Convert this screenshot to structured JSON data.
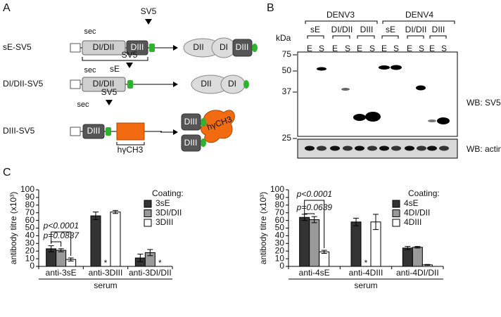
{
  "panel_labels": [
    "A",
    "B",
    "C"
  ],
  "panel_a": {
    "rows": [
      {
        "name": "sE-SV5",
        "sec": "sec",
        "tag": "SV5",
        "domains": [
          "DI/DII",
          "DIII"
        ],
        "bracket": "sE",
        "product": [
          "DII",
          "DI",
          "DIII"
        ]
      },
      {
        "name": "DI/DII-SV5",
        "sec": "sec",
        "tag": "SV5",
        "domains": [
          "DI/DII"
        ],
        "product": [
          "DII",
          "DI"
        ]
      },
      {
        "name": "DIII-SV5",
        "sec": "sec",
        "tag": "SV5",
        "domains": [
          "DIII"
        ],
        "fusion": "hγCH3",
        "product": [
          "DIII",
          "DIII",
          "hγCH3"
        ]
      }
    ]
  },
  "panel_b": {
    "groups": [
      {
        "name": "DENV3",
        "constructs": [
          "sE",
          "DI/DII",
          "DIII"
        ]
      },
      {
        "name": "DENV4",
        "constructs": [
          "sE",
          "DI/DII",
          "DIII"
        ]
      }
    ],
    "lanes": [
      "E",
      "S",
      "E",
      "S",
      "E",
      "S",
      "E",
      "S",
      "E",
      "S",
      "E",
      "S"
    ],
    "mw_unit": "kDa",
    "mw_markers": [
      75,
      50,
      37,
      25
    ],
    "blots": [
      "WB: SV5",
      "WB: actin"
    ]
  },
  "chart_data": [
    {
      "type": "bar",
      "y_label": "antibody titre (x10³)",
      "x_label": "serum",
      "legend_title": "Coating:",
      "categories": [
        "anti-3sE",
        "anti-3DIII",
        "anti-3DI/DII"
      ],
      "series": [
        {
          "name": "3sE",
          "color": "#333333",
          "values": [
            23,
            66,
            11
          ],
          "errors": [
            4,
            5,
            5
          ]
        },
        {
          "name": "3DI/DII",
          "color": "#999999",
          "values": [
            21,
            null,
            18
          ],
          "errors": [
            2,
            null,
            4
          ]
        },
        {
          "name": "3DIII",
          "color": "#ffffff",
          "values": [
            9,
            71,
            null
          ],
          "errors": [
            2,
            2,
            null
          ]
        }
      ],
      "ylim": [
        0,
        100
      ],
      "yticks": [
        0,
        10,
        20,
        30,
        40,
        50,
        60,
        70,
        80,
        90,
        100
      ],
      "annotations": [
        "p<0.0001",
        "p=0.0837",
        "*",
        "*"
      ]
    },
    {
      "type": "bar",
      "y_label": "antibody titre (x10³)",
      "x_label": "serum",
      "legend_title": "Coating:",
      "categories": [
        "anti-4sE",
        "anti-4DIII",
        "anti-4DI/DII"
      ],
      "series": [
        {
          "name": "4sE",
          "color": "#333333",
          "values": [
            64,
            58,
            24
          ],
          "errors": [
            4,
            5,
            2
          ]
        },
        {
          "name": "4DI/DII",
          "color": "#999999",
          "values": [
            61,
            null,
            25
          ],
          "errors": [
            4,
            null,
            1
          ]
        },
        {
          "name": "4DIII",
          "color": "#ffffff",
          "values": [
            19,
            58,
            2
          ],
          "errors": [
            2,
            10,
            0.5
          ]
        }
      ],
      "ylim": [
        0,
        100
      ],
      "yticks": [
        0,
        10,
        20,
        30,
        40,
        50,
        60,
        70,
        80,
        90,
        100
      ],
      "annotations": [
        "p<0.0001",
        "p=0.0639",
        "*"
      ]
    }
  ]
}
